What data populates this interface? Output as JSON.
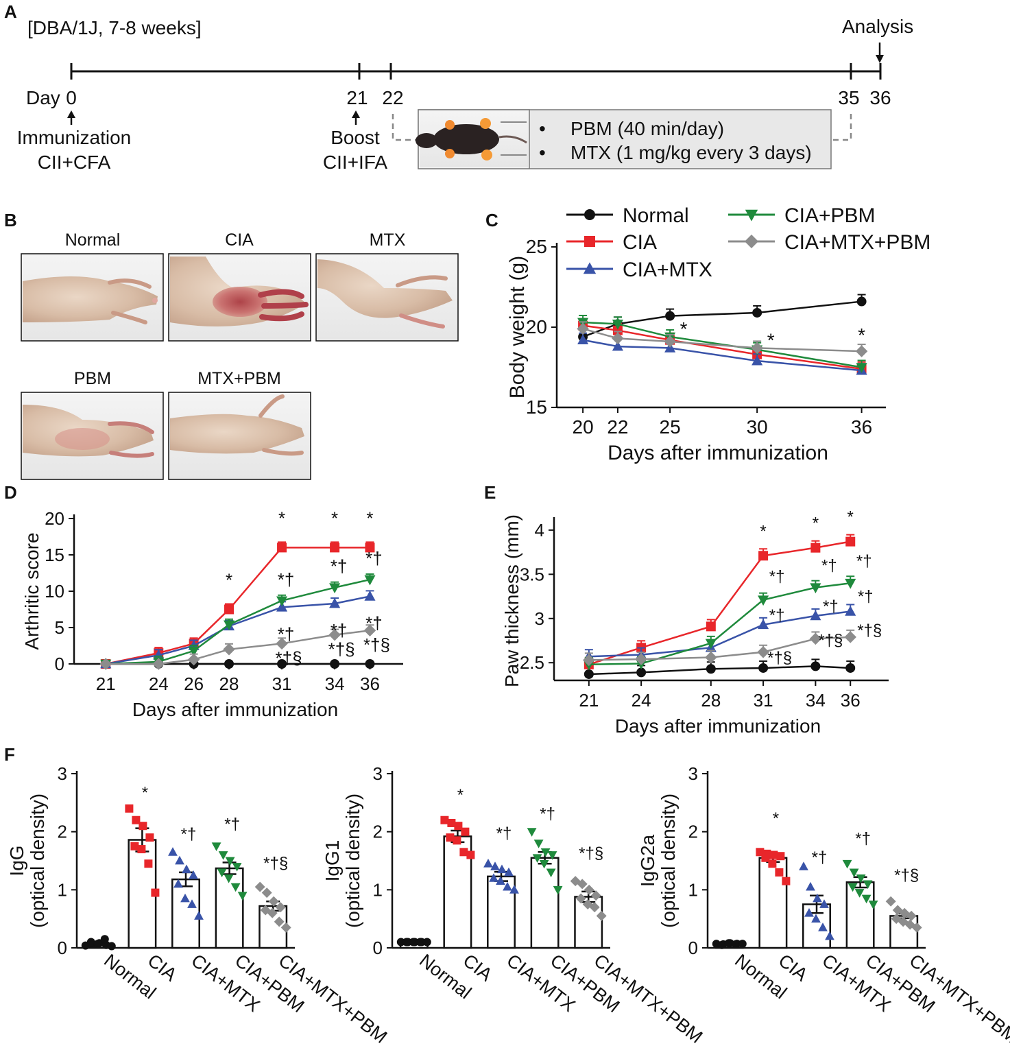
{
  "panel_labels": {
    "a": "A",
    "b": "B",
    "c": "C",
    "d": "D",
    "e": "E",
    "f": "F"
  },
  "colors": {
    "normal": "#111111",
    "cia": "#e8262a",
    "mtx": "#3953a8",
    "pbm": "#1f8a3c",
    "mtxpbm": "#8c8c8c"
  },
  "timeline": {
    "strain": "[DBA/1J, 7-8 weeks]",
    "analysis": "Analysis",
    "day_label": "Day",
    "ticks": [
      "0",
      "21",
      "22",
      "35",
      "36"
    ],
    "immunization": "Immunization",
    "immunization_sub": "CII+CFA",
    "boost": "Boost",
    "boost_sub": "CII+IFA",
    "treatments": [
      "PBM (40 min/day)",
      "MTX (1 mg/kg every 3 days)"
    ]
  },
  "photos": {
    "labels": [
      "Normal",
      "CIA",
      "MTX",
      "PBM",
      "MTX+PBM"
    ]
  },
  "legend": [
    "Normal",
    "CIA",
    "CIA+MTX",
    "CIA+PBM",
    "CIA+MTX+PBM"
  ],
  "chart_data": [
    {
      "id": "C",
      "type": "line",
      "title": "",
      "xlabel": "Days after immunization",
      "ylabel": "Body weight (g)",
      "ylim": [
        15,
        25
      ],
      "yticks": [
        15,
        20,
        25
      ],
      "x": [
        20,
        22,
        25,
        30,
        36
      ],
      "series": [
        {
          "name": "Normal",
          "values": [
            19.4,
            20.2,
            20.7,
            20.9,
            21.6
          ]
        },
        {
          "name": "CIA",
          "values": [
            20.1,
            19.8,
            19.2,
            18.3,
            17.4
          ]
        },
        {
          "name": "CIA+MTX",
          "values": [
            19.2,
            18.8,
            18.7,
            17.9,
            17.3
          ]
        },
        {
          "name": "CIA+PBM",
          "values": [
            20.3,
            20.2,
            19.4,
            18.6,
            17.5
          ]
        },
        {
          "name": "CIA+MTX+PBM",
          "values": [
            19.9,
            19.3,
            19.1,
            18.7,
            18.5
          ]
        }
      ],
      "annotations": [
        {
          "x": 25,
          "text": "*"
        },
        {
          "x": 30,
          "text": "*"
        },
        {
          "x": 36,
          "text": "*"
        }
      ]
    },
    {
      "id": "D",
      "type": "line",
      "xlabel": "Days after immunization",
      "ylabel": "Arthritic score",
      "ylim": [
        0,
        20
      ],
      "yticks": [
        0,
        5,
        10,
        15,
        20
      ],
      "x": [
        21,
        24,
        26,
        28,
        31,
        34,
        36
      ],
      "series": [
        {
          "name": "Normal",
          "values": [
            0,
            0,
            0,
            0,
            0,
            0,
            0
          ]
        },
        {
          "name": "CIA",
          "values": [
            0,
            1.5,
            2.8,
            7.5,
            16,
            16,
            16
          ]
        },
        {
          "name": "CIA+MTX",
          "values": [
            0,
            1.2,
            2.5,
            5.2,
            7.8,
            8.3,
            9.3
          ]
        },
        {
          "name": "CIA+PBM",
          "values": [
            0,
            0.3,
            1.8,
            5.4,
            8.7,
            10.5,
            11.6
          ]
        },
        {
          "name": "CIA+MTX+PBM",
          "values": [
            0,
            0,
            0.6,
            2.0,
            2.8,
            4.0,
            4.6
          ]
        }
      ],
      "annotations": [
        {
          "x": 28,
          "text": "*"
        },
        {
          "x": 31,
          "text": "*"
        },
        {
          "x": 34,
          "text": "*"
        },
        {
          "x": 36,
          "text": "*"
        },
        {
          "x": 31,
          "text": "*†"
        },
        {
          "x": 34,
          "text": "*†"
        },
        {
          "x": 36,
          "text": "*†"
        },
        {
          "x": 31,
          "text": "*†"
        },
        {
          "x": 34,
          "text": "*†"
        },
        {
          "x": 36,
          "text": "*†"
        },
        {
          "x": 31,
          "text": "*†§"
        },
        {
          "x": 34,
          "text": "*†§"
        },
        {
          "x": 36,
          "text": "*†§"
        }
      ]
    },
    {
      "id": "E",
      "type": "line",
      "xlabel": "Days after immunization",
      "ylabel": "Paw thickness (mm)",
      "ylim": [
        2.3,
        4.1
      ],
      "yticks": [
        2.5,
        3,
        3.5,
        4
      ],
      "x": [
        21,
        24,
        28,
        31,
        34,
        36
      ],
      "series": [
        {
          "name": "Normal",
          "values": [
            2.37,
            2.39,
            2.43,
            2.44,
            2.46,
            2.44
          ]
        },
        {
          "name": "CIA",
          "values": [
            2.48,
            2.67,
            2.91,
            3.71,
            3.8,
            3.87
          ]
        },
        {
          "name": "CIA+MTX",
          "values": [
            2.57,
            2.59,
            2.67,
            2.93,
            3.03,
            3.08
          ]
        },
        {
          "name": "CIA+PBM",
          "values": [
            2.48,
            2.49,
            2.72,
            3.21,
            3.35,
            3.4
          ]
        },
        {
          "name": "CIA+MTX+PBM",
          "values": [
            2.53,
            2.54,
            2.56,
            2.62,
            2.77,
            2.79
          ]
        }
      ],
      "annotations": [
        {
          "x": 31,
          "text": "*"
        },
        {
          "x": 34,
          "text": "*"
        },
        {
          "x": 36,
          "text": "*"
        },
        {
          "x": 31,
          "text": "*†"
        },
        {
          "x": 34,
          "text": "*†"
        },
        {
          "x": 36,
          "text": "*†"
        },
        {
          "x": 31,
          "text": "*†"
        },
        {
          "x": 34,
          "text": "*†"
        },
        {
          "x": 36,
          "text": "*†"
        },
        {
          "x": 31,
          "text": "*†§"
        },
        {
          "x": 34,
          "text": "*†§"
        },
        {
          "x": 36,
          "text": "*†§"
        }
      ]
    },
    {
      "id": "F1",
      "type": "bar",
      "ylabel": "IgG",
      "ylabel2": "(optical density)",
      "ylim": [
        0,
        3
      ],
      "yticks": [
        0,
        1,
        2,
        3
      ],
      "categories": [
        "Normal",
        "CIA",
        "CIA+MTX",
        "CIA+PBM",
        "CIA+MTX+PBM"
      ],
      "values": [
        0.07,
        1.86,
        1.18,
        1.37,
        0.72
      ],
      "sem": [
        0.02,
        0.2,
        0.12,
        0.1,
        0.08
      ],
      "points": [
        [
          0.04,
          0.06,
          0.08,
          0.05,
          0.1,
          0.07,
          0.15,
          0.03
        ],
        [
          2.4,
          2.2,
          2.1,
          1.9,
          1.75,
          1.7,
          1.45,
          0.95
        ],
        [
          1.65,
          1.5,
          1.35,
          1.25,
          1.1,
          0.85,
          0.75,
          0.55
        ],
        [
          1.75,
          1.6,
          1.5,
          1.4,
          1.3,
          1.2,
          1.05,
          0.9
        ],
        [
          1.05,
          0.95,
          0.8,
          0.7,
          0.65,
          0.6,
          0.45,
          0.35
        ]
      ],
      "annotations": [
        "",
        "*",
        "*†",
        "*†",
        "*†§"
      ]
    },
    {
      "id": "F2",
      "type": "bar",
      "ylabel": "IgG1",
      "ylabel2": "(optical density)",
      "ylim": [
        0,
        3
      ],
      "yticks": [
        0,
        1,
        2,
        3
      ],
      "categories": [
        "Normal",
        "CIA",
        "CIA+MTX",
        "CIA+PBM",
        "CIA+MTX+PBM"
      ],
      "values": [
        0.1,
        1.92,
        1.23,
        1.55,
        0.88
      ],
      "sem": [
        0.01,
        0.1,
        0.08,
        0.1,
        0.09
      ],
      "points": [
        [
          0.1,
          0.1,
          0.1,
          0.1,
          0.1,
          0.1,
          0.1,
          0.1
        ],
        [
          2.2,
          2.15,
          2.1,
          2.0,
          1.9,
          1.85,
          1.65,
          1.6
        ],
        [
          1.45,
          1.4,
          1.35,
          1.3,
          1.2,
          1.15,
          1.05,
          1.0
        ],
        [
          2.0,
          1.8,
          1.65,
          1.6,
          1.55,
          1.45,
          1.3,
          1.0
        ],
        [
          1.15,
          1.1,
          1.0,
          0.9,
          0.85,
          0.75,
          0.7,
          0.55
        ]
      ],
      "annotations": [
        "",
        "*",
        "*†",
        "*†",
        "*†§"
      ]
    },
    {
      "id": "F3",
      "type": "bar",
      "ylabel": "IgG2a",
      "ylabel2": "(optical density)",
      "ylim": [
        0,
        3
      ],
      "yticks": [
        0,
        1,
        2,
        3
      ],
      "categories": [
        "Normal",
        "CIA",
        "CIA+MTX",
        "CIA+PBM",
        "CIA+MTX+PBM"
      ],
      "values": [
        0.07,
        1.55,
        0.75,
        1.13,
        0.55
      ],
      "sem": [
        0.01,
        0.07,
        0.15,
        0.09,
        0.04
      ],
      "points": [
        [
          0.07,
          0.06,
          0.08,
          0.07,
          0.05,
          0.08,
          0.06,
          0.07
        ],
        [
          1.65,
          1.62,
          1.6,
          1.58,
          1.55,
          1.45,
          1.3,
          1.15
        ],
        [
          1.4,
          1.05,
          0.85,
          0.75,
          0.6,
          0.5,
          0.35,
          0.2
        ],
        [
          1.45,
          1.3,
          1.2,
          1.1,
          1.05,
          0.95,
          0.85,
          0.75
        ],
        [
          0.8,
          0.65,
          0.6,
          0.55,
          0.5,
          0.45,
          0.4,
          0.35
        ]
      ],
      "annotations": [
        "",
        "*",
        "*†",
        "*†",
        "*†§"
      ]
    }
  ]
}
